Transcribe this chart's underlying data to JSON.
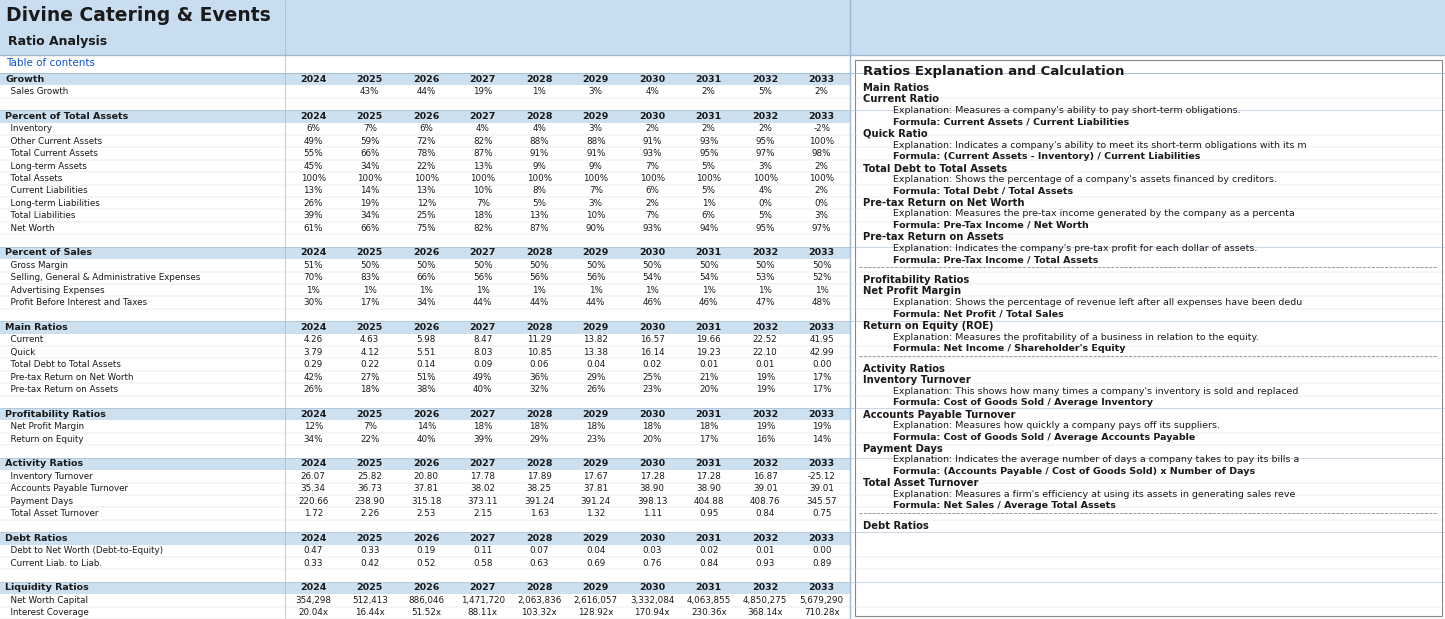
{
  "title": "Divine Catering & Events",
  "subtitle": "Ratio Analysis",
  "toc_text": "Table of contents",
  "bg_header": "#c9ddf0",
  "bg_section_row": "#cde0f0",
  "bg_white": "#ffffff",
  "bg_data_alt": "#ffffff",
  "text_dark": "#1a1a1a",
  "text_link": "#1155CC",
  "years": [
    "2024",
    "2025",
    "2026",
    "2027",
    "2028",
    "2029",
    "2030",
    "2031",
    "2032",
    "2033"
  ],
  "sections": [
    {
      "name": "Growth",
      "rows": [
        {
          "label": "  Sales Growth",
          "values": [
            "",
            "43%",
            "44%",
            "19%",
            "1%",
            "3%",
            "4%",
            "2%",
            "5%",
            "2%"
          ]
        }
      ]
    },
    {
      "name": "Percent of Total Assets",
      "rows": [
        {
          "label": "  Inventory",
          "values": [
            "6%",
            "7%",
            "6%",
            "4%",
            "4%",
            "3%",
            "2%",
            "2%",
            "2%",
            "-2%"
          ]
        },
        {
          "label": "  Other Current Assets",
          "values": [
            "49%",
            "59%",
            "72%",
            "82%",
            "88%",
            "88%",
            "91%",
            "93%",
            "95%",
            "100%"
          ]
        },
        {
          "label": "  Total Current Assets",
          "values": [
            "55%",
            "66%",
            "78%",
            "87%",
            "91%",
            "91%",
            "93%",
            "95%",
            "97%",
            "98%"
          ]
        },
        {
          "label": "  Long-term Assets",
          "values": [
            "45%",
            "34%",
            "22%",
            "13%",
            "9%",
            "9%",
            "7%",
            "5%",
            "3%",
            "2%"
          ]
        },
        {
          "label": "  Total Assets",
          "values": [
            "100%",
            "100%",
            "100%",
            "100%",
            "100%",
            "100%",
            "100%",
            "100%",
            "100%",
            "100%"
          ]
        },
        {
          "label": "  Current Liabilities",
          "values": [
            "13%",
            "14%",
            "13%",
            "10%",
            "8%",
            "7%",
            "6%",
            "5%",
            "4%",
            "2%"
          ]
        },
        {
          "label": "  Long-term Liabilities",
          "values": [
            "26%",
            "19%",
            "12%",
            "7%",
            "5%",
            "3%",
            "2%",
            "1%",
            "0%",
            "0%"
          ]
        },
        {
          "label": "  Total Liabilities",
          "values": [
            "39%",
            "34%",
            "25%",
            "18%",
            "13%",
            "10%",
            "7%",
            "6%",
            "5%",
            "3%"
          ]
        },
        {
          "label": "  Net Worth",
          "values": [
            "61%",
            "66%",
            "75%",
            "82%",
            "87%",
            "90%",
            "93%",
            "94%",
            "95%",
            "97%"
          ]
        }
      ]
    },
    {
      "name": "Percent of Sales",
      "rows": [
        {
          "label": "  Gross Margin",
          "values": [
            "51%",
            "50%",
            "50%",
            "50%",
            "50%",
            "50%",
            "50%",
            "50%",
            "50%",
            "50%"
          ]
        },
        {
          "label": "  Selling, General & Administrative Expenses",
          "values": [
            "70%",
            "83%",
            "66%",
            "56%",
            "56%",
            "56%",
            "54%",
            "54%",
            "53%",
            "52%"
          ]
        },
        {
          "label": "  Advertising Expenses",
          "values": [
            "1%",
            "1%",
            "1%",
            "1%",
            "1%",
            "1%",
            "1%",
            "1%",
            "1%",
            "1%"
          ]
        },
        {
          "label": "  Profit Before Interest and Taxes",
          "values": [
            "30%",
            "17%",
            "34%",
            "44%",
            "44%",
            "44%",
            "46%",
            "46%",
            "47%",
            "48%"
          ]
        }
      ]
    },
    {
      "name": "Main Ratios",
      "rows": [
        {
          "label": "  Current",
          "values": [
            "4.26",
            "4.63",
            "5.98",
            "8.47",
            "11.29",
            "13.82",
            "16.57",
            "19.66",
            "22.52",
            "41.95"
          ]
        },
        {
          "label": "  Quick",
          "values": [
            "3.79",
            "4.12",
            "5.51",
            "8.03",
            "10.85",
            "13.38",
            "16.14",
            "19.23",
            "22.10",
            "42.99"
          ]
        },
        {
          "label": "  Total Debt to Total Assets",
          "values": [
            "0.29",
            "0.22",
            "0.14",
            "0.09",
            "0.06",
            "0.04",
            "0.02",
            "0.01",
            "0.01",
            "0.00"
          ]
        },
        {
          "label": "  Pre-tax Return on Net Worth",
          "values": [
            "42%",
            "27%",
            "51%",
            "49%",
            "36%",
            "29%",
            "25%",
            "21%",
            "19%",
            "17%"
          ]
        },
        {
          "label": "  Pre-tax Return on Assets",
          "values": [
            "26%",
            "18%",
            "38%",
            "40%",
            "32%",
            "26%",
            "23%",
            "20%",
            "19%",
            "17%"
          ]
        }
      ]
    },
    {
      "name": "Profitability Ratios",
      "rows": [
        {
          "label": "  Net Profit Margin",
          "values": [
            "12%",
            "7%",
            "14%",
            "18%",
            "18%",
            "18%",
            "18%",
            "18%",
            "19%",
            "19%"
          ]
        },
        {
          "label": "  Return on Equity",
          "values": [
            "34%",
            "22%",
            "40%",
            "39%",
            "29%",
            "23%",
            "20%",
            "17%",
            "16%",
            "14%"
          ]
        }
      ]
    },
    {
      "name": "Activity Ratios",
      "rows": [
        {
          "label": "  Inventory Turnover",
          "values": [
            "26.07",
            "25.82",
            "20.80",
            "17.78",
            "17.89",
            "17.67",
            "17.28",
            "17.28",
            "16.87",
            "-25.12"
          ]
        },
        {
          "label": "  Accounts Payable Turnover",
          "values": [
            "35.34",
            "36.73",
            "37.81",
            "38.02",
            "38.25",
            "37.81",
            "38.90",
            "38.90",
            "39.01",
            "39.01"
          ]
        },
        {
          "label": "  Payment Days",
          "values": [
            "220.66",
            "238.90",
            "315.18",
            "373.11",
            "391.24",
            "391.24",
            "398.13",
            "404.88",
            "408.76",
            "345.57"
          ]
        },
        {
          "label": "  Total Asset Turnover",
          "values": [
            "1.72",
            "2.26",
            "2.53",
            "2.15",
            "1.63",
            "1.32",
            "1.11",
            "0.95",
            "0.84",
            "0.75"
          ]
        }
      ]
    },
    {
      "name": "Debt Ratios",
      "rows": [
        {
          "label": "  Debt to Net Worth (Debt-to-Equity)",
          "values": [
            "0.47",
            "0.33",
            "0.19",
            "0.11",
            "0.07",
            "0.04",
            "0.03",
            "0.02",
            "0.01",
            "0.00"
          ]
        },
        {
          "label": "  Current Liab. to Liab.",
          "values": [
            "0.33",
            "0.42",
            "0.52",
            "0.58",
            "0.63",
            "0.69",
            "0.76",
            "0.84",
            "0.93",
            "0.89"
          ]
        }
      ]
    },
    {
      "name": "Liquidity Ratios",
      "rows": [
        {
          "label": "  Net Worth Capital",
          "values": [
            "354,298",
            "512,413",
            "886,046",
            "1,471,720",
            "2,063,836",
            "2,616,057",
            "3,332,084",
            "4,063,855",
            "4,850,275",
            "5,679,290"
          ]
        },
        {
          "label": "  Interest Coverage",
          "values": [
            "20.04x",
            "16.44x",
            "51.52x",
            "88.11x",
            "103.32x",
            "128.92x",
            "170.94x",
            "230.36x",
            "368.14x",
            "710.28x"
          ]
        }
      ]
    }
  ],
  "right_panel_title": "Ratios Explanation and Calculation",
  "right_panel_lines": [
    {
      "text": "Main Ratios",
      "bold": true,
      "indent": 0
    },
    {
      "text": "Current Ratio",
      "bold": true,
      "indent": 0
    },
    {
      "text": "Explanation: Measures a company's ability to pay short-term obligations.",
      "bold": false,
      "indent": 1
    },
    {
      "text": "Formula: Current Assets / Current Liabilities",
      "bold": true,
      "indent": 1
    },
    {
      "text": "Quick Ratio",
      "bold": true,
      "indent": 0
    },
    {
      "text": "Explanation: Indicates a company's ability to meet its short-term obligations with its m",
      "bold": false,
      "indent": 1
    },
    {
      "text": "Formula: (Current Assets - Inventory) / Current Liabilities",
      "bold": true,
      "indent": 1
    },
    {
      "text": "Total Debt to Total Assets",
      "bold": true,
      "indent": 0
    },
    {
      "text": "Explanation: Shows the percentage of a company's assets financed by creditors.",
      "bold": false,
      "indent": 1
    },
    {
      "text": "Formula: Total Debt / Total Assets",
      "bold": true,
      "indent": 1
    },
    {
      "text": "Pre-tax Return on Net Worth",
      "bold": true,
      "indent": 0
    },
    {
      "text": "Explanation: Measures the pre-tax income generated by the company as a percenta",
      "bold": false,
      "indent": 1
    },
    {
      "text": "Formula: Pre-Tax Income / Net Worth",
      "bold": true,
      "indent": 1
    },
    {
      "text": "Pre-tax Return on Assets",
      "bold": true,
      "indent": 0
    },
    {
      "text": "Explanation: Indicates the company's pre-tax profit for each dollar of assets.",
      "bold": false,
      "indent": 1
    },
    {
      "text": "Formula: Pre-Tax Income / Total Assets",
      "bold": true,
      "indent": 1
    },
    {
      "text": "---separator---",
      "bold": false,
      "indent": 0
    },
    {
      "text": "Profitability Ratios",
      "bold": true,
      "indent": 0
    },
    {
      "text": "Net Profit Margin",
      "bold": true,
      "indent": 0
    },
    {
      "text": "Explanation: Shows the percentage of revenue left after all expenses have been dedu",
      "bold": false,
      "indent": 1
    },
    {
      "text": "Formula: Net Profit / Total Sales",
      "bold": true,
      "indent": 1
    },
    {
      "text": "Return on Equity (ROE)",
      "bold": true,
      "indent": 0
    },
    {
      "text": "Explanation: Measures the profitability of a business in relation to the equity.",
      "bold": false,
      "indent": 1
    },
    {
      "text": "Formula: Net Income / Shareholder's Equity",
      "bold": true,
      "indent": 1
    },
    {
      "text": "---separator---",
      "bold": false,
      "indent": 0
    },
    {
      "text": "Activity Ratios",
      "bold": true,
      "indent": 0
    },
    {
      "text": "Inventory Turnover",
      "bold": true,
      "indent": 0
    },
    {
      "text": "Explanation: This shows how many times a company's inventory is sold and replaced",
      "bold": false,
      "indent": 1
    },
    {
      "text": "Formula: Cost of Goods Sold / Average Inventory",
      "bold": true,
      "indent": 1
    },
    {
      "text": "Accounts Payable Turnover",
      "bold": true,
      "indent": 0
    },
    {
      "text": "Explanation: Measures how quickly a company pays off its suppliers.",
      "bold": false,
      "indent": 1
    },
    {
      "text": "Formula: Cost of Goods Sold / Average Accounts Payable",
      "bold": true,
      "indent": 1
    },
    {
      "text": "Payment Days",
      "bold": true,
      "indent": 0
    },
    {
      "text": "Explanation: Indicates the average number of days a company takes to pay its bills a",
      "bold": false,
      "indent": 1
    },
    {
      "text": "Formula: (Accounts Payable / Cost of Goods Sold) x Number of Days",
      "bold": true,
      "indent": 1
    },
    {
      "text": "Total Asset Turnover",
      "bold": true,
      "indent": 0
    },
    {
      "text": "Explanation: Measures a firm's efficiency at using its assets in generating sales reve",
      "bold": false,
      "indent": 1
    },
    {
      "text": "Formula: Net Sales / Average Total Assets",
      "bold": true,
      "indent": 1
    },
    {
      "text": "---separator---",
      "bold": false,
      "indent": 0
    },
    {
      "text": "Debt Ratios",
      "bold": true,
      "indent": 0
    }
  ]
}
